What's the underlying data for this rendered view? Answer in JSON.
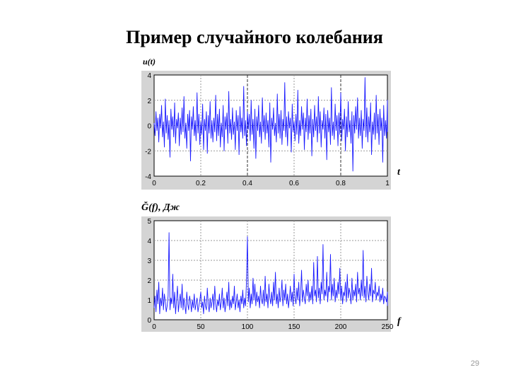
{
  "slide": {
    "title": "Пример случайного колебания",
    "page_number": "29"
  },
  "chart_data": [
    {
      "type": "line",
      "ylabel": "u(t)",
      "xlabel": "t",
      "xlim": [
        0,
        1
      ],
      "ylim": [
        -4,
        4
      ],
      "xticks": [
        "0",
        "0.2",
        "0.4",
        "0.6",
        "0.8",
        "1"
      ],
      "yticks": [
        "4",
        "2",
        "0",
        "-2",
        "-4"
      ],
      "grid": true,
      "line_color": "#1a1aff",
      "dashed_gridlines_x": [
        0.4,
        0.8
      ],
      "series": [
        {
          "x_step": 0.004,
          "values": [
            0.2,
            -0.8,
            1.1,
            -0.4,
            0.6,
            -1.3,
            0.9,
            -0.2,
            1.6,
            -0.9,
            0.3,
            -1.7,
            2.1,
            -0.6,
            0.8,
            -1.1,
            0.4,
            -2.5,
            1.3,
            -0.3,
            0.7,
            -0.9,
            1.8,
            -1.4,
            0.5,
            -0.2,
            1.0,
            -1.6,
            0.6,
            -0.7,
            1.4,
            -0.5,
            2.3,
            -1.0,
            0.2,
            -1.8,
            0.9,
            -0.4,
            1.2,
            -2.8,
            0.7,
            -0.3,
            1.5,
            -0.8,
            0.4,
            -1.2,
            2.6,
            -0.6,
            0.9,
            -1.5,
            0.3,
            -0.7,
            1.7,
            -1.9,
            0.5,
            -0.4,
            1.1,
            -2.2,
            0.8,
            -0.6,
            1.9,
            -1.0,
            0.4,
            -1.3,
            0.6,
            -0.5,
            2.4,
            -1.2,
            0.9,
            -0.8,
            1.3,
            -1.7,
            0.2,
            -0.9,
            1.6,
            -2.0,
            0.7,
            -0.3,
            1.0,
            -1.4,
            2.7,
            -0.6,
            0.5,
            -1.1,
            1.4,
            -0.7,
            0.3,
            -1.9,
            1.2,
            -0.4,
            0.8,
            -2.3,
            1.5,
            -0.5,
            0.6,
            -1.0,
            3.1,
            -0.8,
            0.4,
            -1.6,
            1.1,
            -0.3,
            0.9,
            -1.2,
            2.0,
            -0.7,
            0.5,
            -1.8,
            1.3,
            -2.6,
            0.7,
            -0.4,
            1.6,
            -0.9,
            0.3,
            -1.4,
            2.2,
            -0.5,
            0.8,
            -1.1,
            1.0,
            -0.6,
            0.4,
            -1.7,
            1.8,
            -2.9,
            0.6,
            -0.3,
            1.4,
            -0.8,
            0.2,
            -1.3,
            2.5,
            -0.6,
            0.9,
            -1.0,
            1.2,
            -1.5,
            0.5,
            -0.4,
            3.4,
            -0.9,
            0.7,
            -1.6,
            1.1,
            -0.2,
            0.6,
            -2.1,
            1.7,
            -0.5,
            0.3,
            -1.2,
            0.9,
            -0.7,
            2.8,
            -1.4,
            0.4,
            -0.8,
            1.5,
            -0.3,
            1.0,
            -1.9,
            0.6,
            -0.5,
            2.1,
            -1.1,
            0.8,
            -0.6,
            1.3,
            -2.4,
            0.5,
            -0.9,
            1.6,
            -0.4,
            0.7,
            -1.3,
            2.3,
            -0.6,
            1.1,
            -1.7,
            0.4,
            -0.3,
            1.4,
            -1.0,
            0.9,
            -2.7,
            1.2,
            -0.5,
            0.6,
            -1.5,
            3.0,
            -0.8,
            0.3,
            -1.1,
            1.7,
            -0.4,
            0.8,
            -1.6,
            1.0,
            -0.7,
            2.6,
            -1.2,
            0.5,
            -0.3,
            1.3,
            -2.0,
            0.7,
            -0.9,
            1.9,
            -0.5,
            0.4,
            -1.4,
            1.1,
            -3.6,
            0.8,
            -0.6,
            1.5,
            -0.3,
            2.2,
            -1.0,
            0.6,
            -0.8,
            1.2,
            -1.8,
            0.5,
            -0.4,
            3.8,
            -0.9,
            1.4,
            -1.3,
            0.7,
            -0.5,
            1.8,
            -2.3,
            0.3,
            -0.7,
            1.0,
            -1.1,
            2.4,
            -0.6,
            0.9,
            -1.5,
            1.3,
            -0.4,
            0.6,
            -2.9,
            1.6,
            -0.8,
            0.4,
            -1.0,
            2.0,
            -0.5
          ]
        }
      ]
    },
    {
      "type": "line",
      "ylabel": "Ğ(f),  Дж",
      "xlabel": "f",
      "xlim": [
        0,
        250
      ],
      "ylim": [
        0,
        5
      ],
      "xticks": [
        "0",
        "50",
        "100",
        "150",
        "200",
        "250"
      ],
      "yticks": [
        "5",
        "4",
        "3",
        "2",
        "1",
        "0"
      ],
      "grid": true,
      "line_color": "#1a1aff",
      "series": [
        {
          "x_step": 1,
          "values": [
            0.6,
            1.2,
            0.4,
            1.5,
            0.8,
            1.9,
            0.3,
            1.1,
            0.7,
            1.6,
            0.5,
            1.3,
            0.9,
            0.4,
            0.7,
            1.2,
            4.4,
            0.5,
            1.1,
            0.8,
            2.3,
            0.6,
            1.4,
            0.3,
            1.0,
            1.7,
            0.4,
            0.9,
            1.3,
            0.6,
            1.8,
            0.5,
            1.1,
            0.7,
            0.3,
            1.4,
            0.8,
            0.5,
            1.2,
            0.9,
            0.4,
            1.0,
            0.6,
            1.3,
            0.5,
            0.8,
            1.1,
            0.4,
            0.7,
            1.0,
            1.4,
            0.6,
            0.9,
            0.3,
            1.2,
            0.7,
            0.5,
            1.6,
            0.8,
            0.4,
            1.1,
            0.6,
            0.9,
            1.3,
            0.5,
            1.7,
            0.8,
            0.4,
            1.0,
            0.7,
            1.3,
            0.5,
            0.9,
            1.6,
            0.6,
            1.1,
            0.4,
            0.8,
            1.4,
            0.7,
            1.9,
            0.5,
            1.0,
            0.6,
            1.2,
            0.8,
            1.7,
            0.5,
            0.9,
            1.3,
            0.6,
            1.0,
            0.4,
            1.2,
            0.8,
            1.5,
            0.6,
            1.1,
            0.7,
            2.0,
            4.2,
            0.9,
            1.6,
            0.6,
            1.3,
            0.8,
            2.1,
            1.0,
            1.8,
            0.7,
            1.4,
            0.9,
            1.2,
            0.6,
            1.7,
            1.0,
            0.8,
            1.5,
            0.7,
            2.2,
            0.9,
            1.3,
            0.6,
            1.8,
            1.1,
            0.8,
            1.4,
            0.7,
            1.9,
            1.0,
            2.4,
            0.8,
            1.3,
            0.6,
            1.6,
            0.9,
            1.2,
            2.0,
            0.7,
            1.5,
            1.0,
            1.8,
            0.8,
            1.3,
            0.6,
            1.1,
            1.7,
            0.9,
            1.4,
            0.7,
            2.3,
            1.1,
            0.8,
            1.6,
            1.0,
            1.9,
            0.7,
            1.3,
            2.5,
            0.9,
            1.5,
            1.1,
            0.8,
            1.8,
            1.2,
            2.0,
            0.9,
            1.4,
            1.0,
            1.7,
            0.8,
            2.9,
            1.2,
            1.5,
            0.9,
            3.2,
            1.1,
            1.6,
            0.8,
            1.9,
            1.3,
            3.8,
            1.0,
            1.5,
            1.2,
            2.4,
            0.9,
            1.7,
            1.4,
            3.3,
            1.0,
            1.8,
            1.2,
            2.1,
            0.9,
            1.5,
            1.1,
            1.9,
            1.3,
            2.6,
            1.0,
            1.7,
            0.8,
            1.4,
            1.2,
            1.9,
            0.9,
            2.3,
            1.1,
            1.6,
            1.3,
            0.8,
            2.1,
            1.0,
            1.5,
            1.2,
            1.8,
            0.9,
            2.4,
            1.3,
            1.6,
            1.0,
            2.0,
            1.2,
            3.5,
            1.1,
            1.7,
            0.9,
            2.2,
            1.4,
            1.0,
            1.8,
            1.2,
            2.6,
            0.9,
            1.5,
            1.3,
            1.9,
            1.0,
            1.4,
            1.2,
            1.7,
            0.9,
            1.3,
            1.0,
            1.6,
            0.8,
            1.2,
            1.1,
            0.9,
            1.4,
            0.7
          ]
        }
      ]
    }
  ]
}
